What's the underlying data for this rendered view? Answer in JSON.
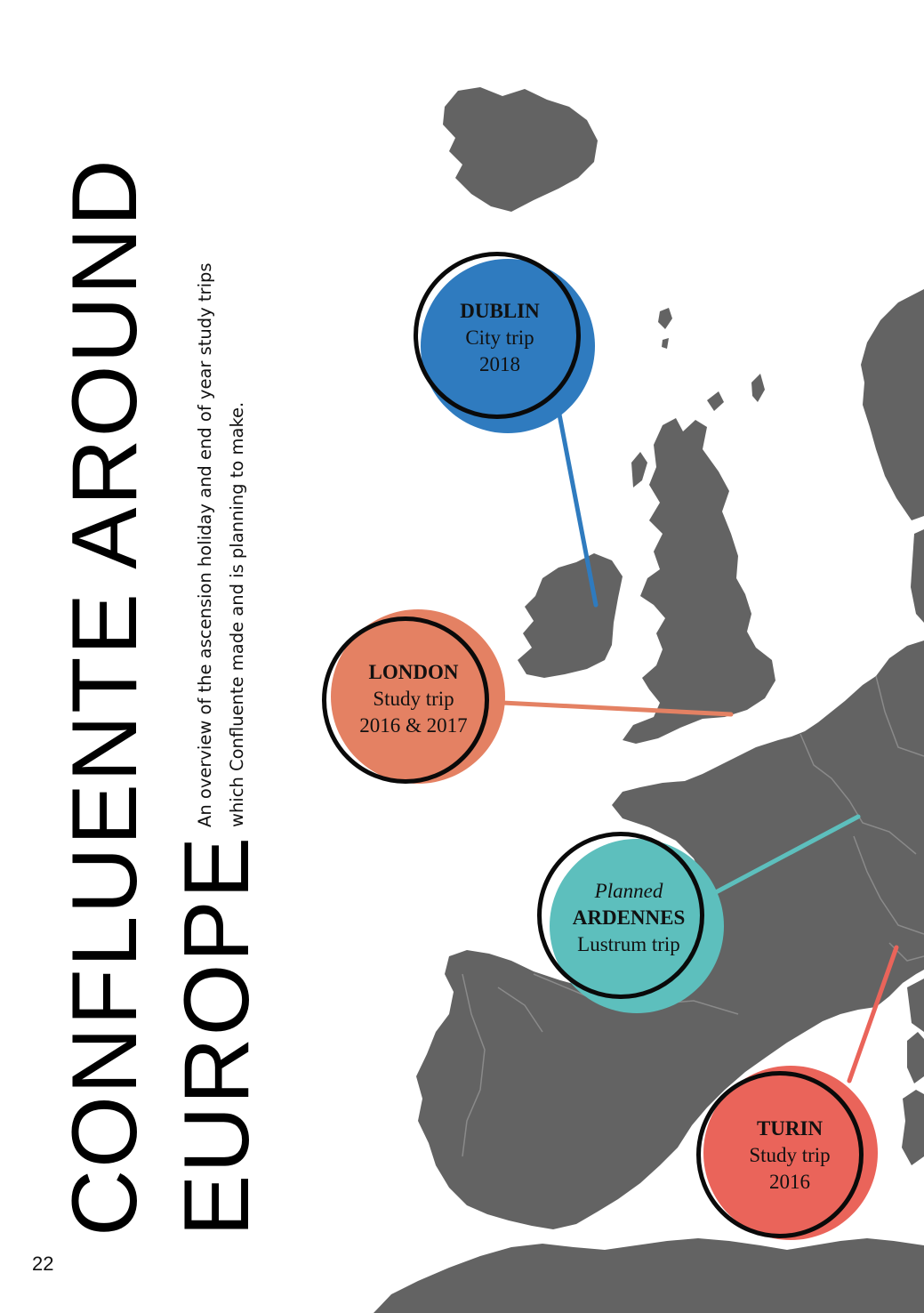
{
  "title": {
    "line1": "CONFLUENTE AROUND",
    "line2": "EUROPE"
  },
  "subtitle": "An overview of  the ascension holiday and end of year study trips which Confluente made and is planning to make.",
  "page_number": "22",
  "colors": {
    "land": "#636363",
    "dublin": "#2f7bbf",
    "london": "#e48163",
    "ardennes": "#5dbfbd",
    "turin": "#ea645a"
  },
  "trips": {
    "dublin": {
      "city": "DUBLIN",
      "type": "City trip",
      "year": "2018"
    },
    "london": {
      "city": "LONDON",
      "type": "Study trip",
      "year": "2016 & 2017"
    },
    "ardennes": {
      "status": "Planned",
      "city": "ARDENNES",
      "type": "Lustrum trip"
    },
    "turin": {
      "city": "TURIN",
      "type": "Study trip",
      "year": "2016"
    }
  }
}
